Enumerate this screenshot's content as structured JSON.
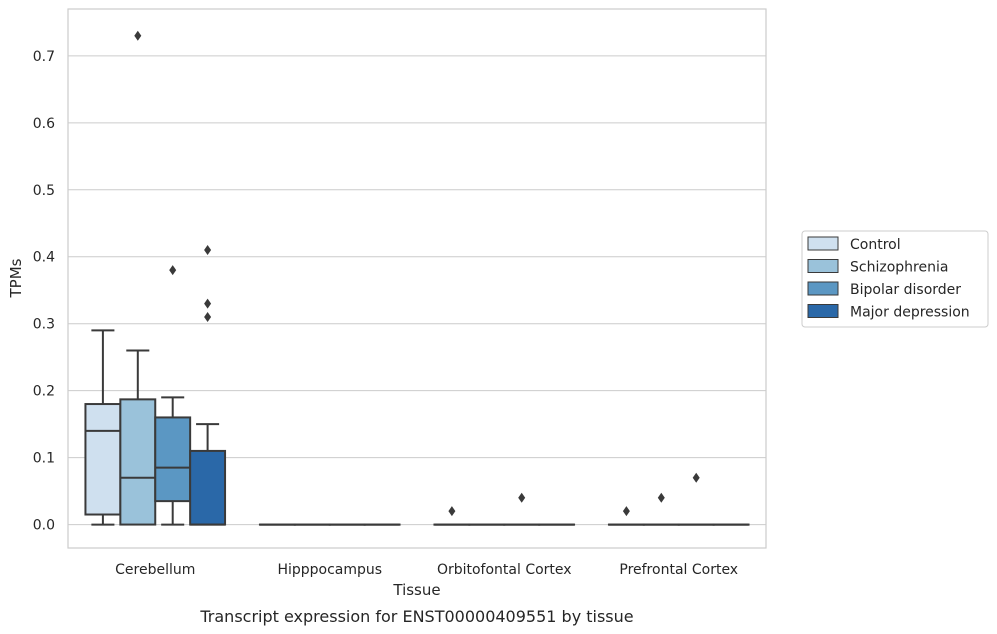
{
  "chart_data": {
    "type": "box",
    "title": "",
    "caption": "Transcript expression for ENST00000409551 by tissue",
    "xlabel": "Tissue",
    "ylabel": "TPMs",
    "ylim": [
      -0.035,
      0.77
    ],
    "yticks": [
      0.0,
      0.1,
      0.2,
      0.3,
      0.4,
      0.5,
      0.6,
      0.7
    ],
    "ytick_labels": [
      "0.0",
      "0.1",
      "0.2",
      "0.3",
      "0.4",
      "0.5",
      "0.6",
      "0.7"
    ],
    "grid": "horizontal",
    "legend_position": "right",
    "categories": [
      "Cerebellum",
      "Hipppocampus",
      "Orbitofontal Cortex",
      "Prefrontal Cortex"
    ],
    "series": [
      {
        "name": "Control",
        "color": "#cfe0ef",
        "boxes": [
          {
            "whisker_low": 0.0,
            "q1": 0.015,
            "median": 0.14,
            "q3": 0.18,
            "whisker_high": 0.29,
            "outliers": []
          },
          {
            "whisker_low": 0.0,
            "q1": 0.0,
            "median": 0.0,
            "q3": 0.0,
            "whisker_high": 0.0,
            "outliers": []
          },
          {
            "whisker_low": 0.0,
            "q1": 0.0,
            "median": 0.0,
            "q3": 0.0,
            "whisker_high": 0.0,
            "outliers": [
              0.02
            ]
          },
          {
            "whisker_low": 0.0,
            "q1": 0.0,
            "median": 0.0,
            "q3": 0.0,
            "whisker_high": 0.0,
            "outliers": [
              0.02
            ]
          }
        ]
      },
      {
        "name": "Schizophrenia",
        "color": "#9ac2da",
        "boxes": [
          {
            "whisker_low": 0.0,
            "q1": 0.0,
            "median": 0.07,
            "q3": 0.187,
            "whisker_high": 0.26,
            "outliers": [
              0.73
            ]
          },
          {
            "whisker_low": 0.0,
            "q1": 0.0,
            "median": 0.0,
            "q3": 0.0,
            "whisker_high": 0.0,
            "outliers": []
          },
          {
            "whisker_low": 0.0,
            "q1": 0.0,
            "median": 0.0,
            "q3": 0.0,
            "whisker_high": 0.0,
            "outliers": []
          },
          {
            "whisker_low": 0.0,
            "q1": 0.0,
            "median": 0.0,
            "q3": 0.0,
            "whisker_high": 0.0,
            "outliers": [
              0.04
            ]
          }
        ]
      },
      {
        "name": "Bipolar disorder",
        "color": "#5b97c3",
        "boxes": [
          {
            "whisker_low": 0.0,
            "q1": 0.035,
            "median": 0.085,
            "q3": 0.16,
            "whisker_high": 0.19,
            "outliers": [
              0.38
            ]
          },
          {
            "whisker_low": 0.0,
            "q1": 0.0,
            "median": 0.0,
            "q3": 0.0,
            "whisker_high": 0.0,
            "outliers": []
          },
          {
            "whisker_low": 0.0,
            "q1": 0.0,
            "median": 0.0,
            "q3": 0.0,
            "whisker_high": 0.0,
            "outliers": [
              0.04
            ]
          },
          {
            "whisker_low": 0.0,
            "q1": 0.0,
            "median": 0.0,
            "q3": 0.0,
            "whisker_high": 0.0,
            "outliers": [
              0.07
            ]
          }
        ]
      },
      {
        "name": "Major depression",
        "color": "#2a68a8",
        "boxes": [
          {
            "whisker_low": 0.0,
            "q1": 0.0,
            "median": 0.0,
            "q3": 0.11,
            "whisker_high": 0.15,
            "outliers": [
              0.41,
              0.33,
              0.31
            ]
          },
          {
            "whisker_low": 0.0,
            "q1": 0.0,
            "median": 0.0,
            "q3": 0.0,
            "whisker_high": 0.0,
            "outliers": []
          },
          {
            "whisker_low": 0.0,
            "q1": 0.0,
            "median": 0.0,
            "q3": 0.0,
            "whisker_high": 0.0,
            "outliers": []
          },
          {
            "whisker_low": 0.0,
            "q1": 0.0,
            "median": 0.0,
            "q3": 0.0,
            "whisker_high": 0.0,
            "outliers": []
          }
        ]
      }
    ]
  }
}
